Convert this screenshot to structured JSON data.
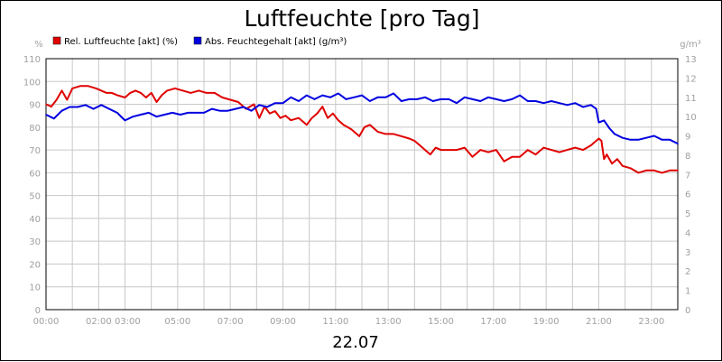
{
  "chart_data": {
    "type": "line",
    "title": "Luftfeuchte [pro Tag]",
    "date_label": "22.07",
    "y_left_unit": "%",
    "y_right_unit": "g/m³",
    "ylim_left": [
      0,
      110
    ],
    "ylim_right": [
      0,
      13
    ],
    "yticks_left": [
      "0",
      "10",
      "20",
      "30",
      "40",
      "50",
      "60",
      "70",
      "80",
      "90",
      "100",
      "110"
    ],
    "yticks_right": [
      "0",
      "1",
      "2",
      "3",
      "4",
      "5",
      "6",
      "7",
      "8",
      "9",
      "10",
      "11",
      "12",
      "13"
    ],
    "xlim_hours": [
      0,
      24
    ],
    "xticks": [
      "00:00",
      "02:00 03:00",
      "05:00",
      "07:00",
      "09:00",
      "11:00",
      "13:00",
      "15:00",
      "17:00",
      "19:00",
      "21:00",
      "23:00"
    ],
    "grid": true,
    "legend_position": "top-left",
    "series": [
      {
        "name": "Rel. Luftfeuchte [akt] (%)",
        "axis": "left",
        "color": "#e00000",
        "x": [
          0,
          0.2,
          0.4,
          0.6,
          0.8,
          1.0,
          1.3,
          1.6,
          1.9,
          2.1,
          2.3,
          2.5,
          2.7,
          3.0,
          3.2,
          3.4,
          3.6,
          3.8,
          4.0,
          4.2,
          4.4,
          4.6,
          4.9,
          5.2,
          5.5,
          5.8,
          6.1,
          6.4,
          6.7,
          7.0,
          7.3,
          7.6,
          7.9,
          8.1,
          8.3,
          8.5,
          8.7,
          8.9,
          9.1,
          9.3,
          9.6,
          9.9,
          10.1,
          10.3,
          10.5,
          10.7,
          10.9,
          11.1,
          11.3,
          11.6,
          11.9,
          12.1,
          12.3,
          12.6,
          12.9,
          13.2,
          13.5,
          13.8,
          14.0,
          14.2,
          14.4,
          14.6,
          14.8,
          15.0,
          15.3,
          15.6,
          15.9,
          16.2,
          16.5,
          16.8,
          17.1,
          17.4,
          17.7,
          18.0,
          18.3,
          18.6,
          18.9,
          19.2,
          19.5,
          19.8,
          20.1,
          20.4,
          20.7,
          20.9,
          21.0,
          21.1,
          21.2,
          21.3,
          21.5,
          21.7,
          21.9,
          22.2,
          22.5,
          22.8,
          23.1,
          23.4,
          23.7,
          24.0
        ],
        "values": [
          90,
          89,
          92,
          96,
          92,
          97,
          98,
          98,
          97,
          96,
          95,
          95,
          94,
          93,
          95,
          96,
          95,
          93,
          95,
          91,
          94,
          96,
          97,
          96,
          95,
          96,
          95,
          95,
          93,
          92,
          91,
          88,
          90,
          84,
          89,
          86,
          87,
          84,
          85,
          83,
          84,
          81,
          84,
          86,
          89,
          84,
          86,
          83,
          81,
          79,
          76,
          80,
          81,
          78,
          77,
          77,
          76,
          75,
          74,
          72,
          70,
          68,
          71,
          70,
          70,
          70,
          71,
          67,
          70,
          69,
          70,
          65,
          67,
          67,
          70,
          68,
          71,
          70,
          69,
          70,
          71,
          70,
          72,
          74,
          75,
          74,
          66,
          68,
          64,
          66,
          63,
          62,
          60,
          61,
          61,
          60,
          61,
          61
        ]
      },
      {
        "name": "Abs. Feuchtegehalt [akt] (g/m³)",
        "axis": "right",
        "color": "#0000e0",
        "x": [
          0,
          0.3,
          0.6,
          0.9,
          1.2,
          1.5,
          1.8,
          2.1,
          2.4,
          2.7,
          3.0,
          3.3,
          3.6,
          3.9,
          4.2,
          4.5,
          4.8,
          5.1,
          5.4,
          5.7,
          6.0,
          6.3,
          6.6,
          6.9,
          7.2,
          7.5,
          7.8,
          8.1,
          8.4,
          8.7,
          9.0,
          9.3,
          9.6,
          9.9,
          10.2,
          10.5,
          10.8,
          11.1,
          11.4,
          11.7,
          12.0,
          12.3,
          12.6,
          12.9,
          13.2,
          13.5,
          13.8,
          14.1,
          14.4,
          14.7,
          15.0,
          15.3,
          15.6,
          15.9,
          16.2,
          16.5,
          16.8,
          17.1,
          17.4,
          17.7,
          18.0,
          18.3,
          18.6,
          18.9,
          19.2,
          19.5,
          19.8,
          20.1,
          20.4,
          20.7,
          20.9,
          21.0,
          21.2,
          21.4,
          21.6,
          21.9,
          22.2,
          22.5,
          22.8,
          23.1,
          23.4,
          23.7,
          24.0
        ],
        "values": [
          10.1,
          9.9,
          10.3,
          10.5,
          10.5,
          10.6,
          10.4,
          10.6,
          10.4,
          10.2,
          9.8,
          10.0,
          10.1,
          10.2,
          10.0,
          10.1,
          10.2,
          10.1,
          10.2,
          10.2,
          10.2,
          10.4,
          10.3,
          10.3,
          10.4,
          10.5,
          10.3,
          10.6,
          10.5,
          10.7,
          10.7,
          11.0,
          10.8,
          11.1,
          10.9,
          11.1,
          11.0,
          11.2,
          10.9,
          11.0,
          11.1,
          10.8,
          11.0,
          11.0,
          11.2,
          10.8,
          10.9,
          10.9,
          11.0,
          10.8,
          10.9,
          10.9,
          10.7,
          11.0,
          10.9,
          10.8,
          11.0,
          10.9,
          10.8,
          10.9,
          11.1,
          10.8,
          10.8,
          10.7,
          10.8,
          10.7,
          10.6,
          10.7,
          10.5,
          10.6,
          10.4,
          9.7,
          9.8,
          9.4,
          9.1,
          8.9,
          8.8,
          8.8,
          8.9,
          9.0,
          8.8,
          8.8,
          8.6
        ]
      }
    ]
  }
}
